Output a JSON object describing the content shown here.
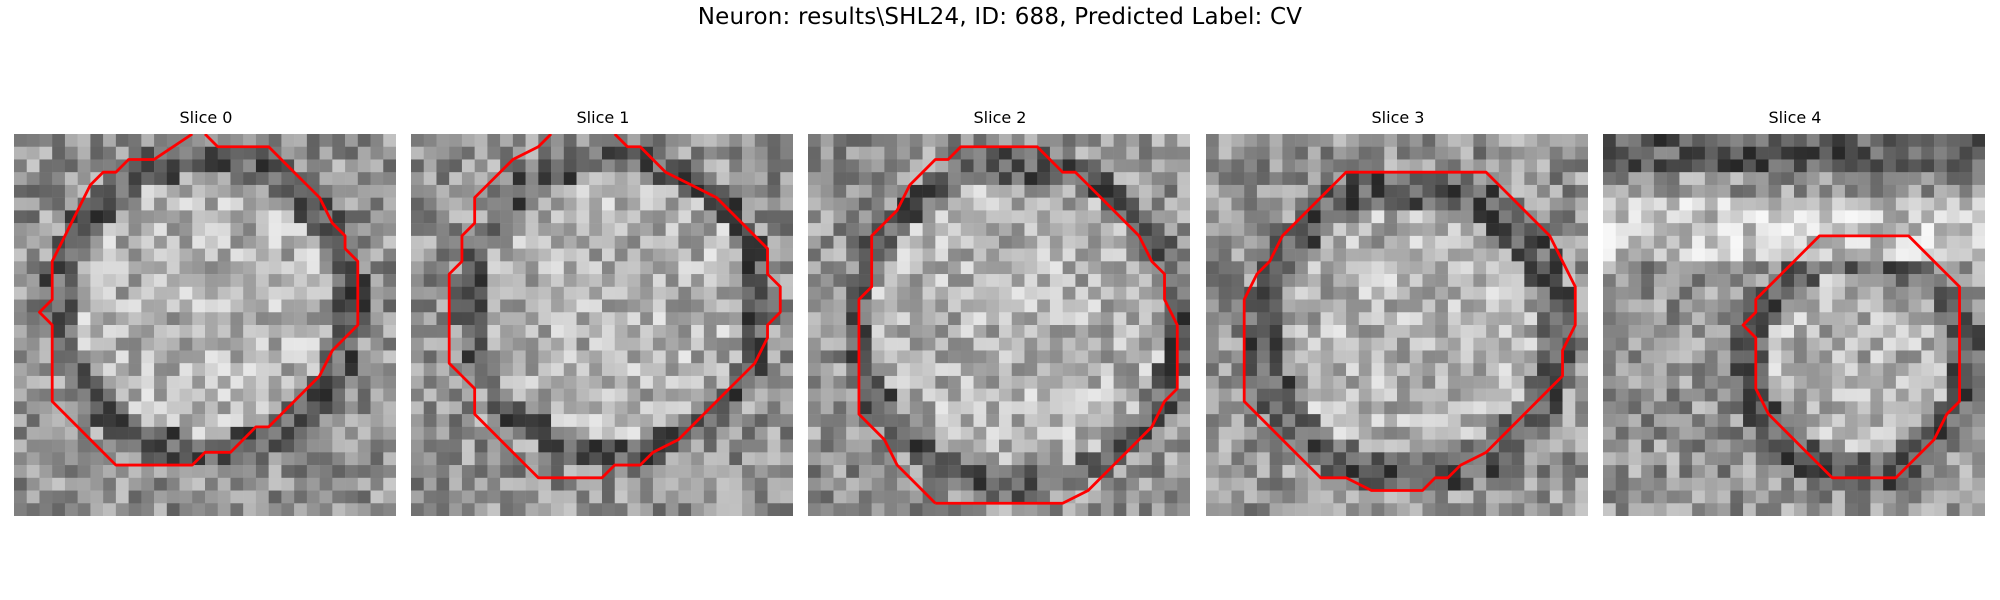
{
  "figure": {
    "title": "Neuron: results\\SHL24, ID: 688, Predicted Label: CV"
  },
  "panels": [
    {
      "label": "Slice 0",
      "contour": [
        [
          14,
          0
        ],
        [
          11,
          2
        ],
        [
          9,
          2
        ],
        [
          8,
          3
        ],
        [
          7,
          3
        ],
        [
          6,
          4
        ],
        [
          5,
          6
        ],
        [
          4,
          8
        ],
        [
          3,
          10
        ],
        [
          3,
          13
        ],
        [
          2,
          14
        ],
        [
          3,
          15
        ],
        [
          3,
          18
        ],
        [
          3,
          21
        ],
        [
          4,
          22
        ],
        [
          5,
          23
        ],
        [
          6,
          24
        ],
        [
          7,
          25
        ],
        [
          8,
          26
        ],
        [
          10,
          26
        ],
        [
          12,
          26
        ],
        [
          14,
          26
        ],
        [
          15,
          25
        ],
        [
          17,
          25
        ],
        [
          18,
          24
        ],
        [
          19,
          23
        ],
        [
          20,
          23
        ],
        [
          21,
          22
        ],
        [
          22,
          21
        ],
        [
          23,
          20
        ],
        [
          24,
          19
        ],
        [
          25,
          17
        ],
        [
          26,
          16
        ],
        [
          27,
          15
        ],
        [
          27,
          12
        ],
        [
          27,
          10
        ],
        [
          26,
          9
        ],
        [
          26,
          8
        ],
        [
          25,
          7
        ],
        [
          24,
          5
        ],
        [
          23,
          4
        ],
        [
          22,
          3
        ],
        [
          21,
          2
        ],
        [
          20,
          1
        ],
        [
          19,
          1
        ],
        [
          17,
          1
        ],
        [
          16,
          1
        ],
        [
          15,
          0
        ]
      ]
    },
    {
      "label": "Slice 1",
      "contour": [
        [
          11,
          0
        ],
        [
          10,
          1
        ],
        [
          8,
          2
        ],
        [
          7,
          3
        ],
        [
          6,
          4
        ],
        [
          5,
          5
        ],
        [
          5,
          7
        ],
        [
          4,
          8
        ],
        [
          4,
          10
        ],
        [
          3,
          11
        ],
        [
          3,
          13
        ],
        [
          3,
          16
        ],
        [
          3,
          18
        ],
        [
          4,
          19
        ],
        [
          5,
          20
        ],
        [
          5,
          22
        ],
        [
          6,
          23
        ],
        [
          7,
          24
        ],
        [
          8,
          25
        ],
        [
          9,
          26
        ],
        [
          10,
          27
        ],
        [
          12,
          27
        ],
        [
          14,
          27
        ],
        [
          15,
          27
        ],
        [
          16,
          26
        ],
        [
          18,
          26
        ],
        [
          19,
          25
        ],
        [
          21,
          24
        ],
        [
          22,
          23
        ],
        [
          23,
          22
        ],
        [
          24,
          21
        ],
        [
          25,
          20
        ],
        [
          26,
          19
        ],
        [
          27,
          18
        ],
        [
          28,
          16
        ],
        [
          28,
          15
        ],
        [
          29,
          14
        ],
        [
          29,
          13
        ],
        [
          29,
          12
        ],
        [
          28,
          11
        ],
        [
          28,
          9
        ],
        [
          27,
          8
        ],
        [
          26,
          7
        ],
        [
          25,
          6
        ],
        [
          24,
          5
        ],
        [
          22,
          4
        ],
        [
          20,
          3
        ],
        [
          19,
          2
        ],
        [
          18,
          1
        ],
        [
          17,
          1
        ],
        [
          16,
          0
        ]
      ]
    },
    {
      "label": "Slice 2",
      "contour": [
        [
          10,
          29
        ],
        [
          9,
          28
        ],
        [
          8,
          27
        ],
        [
          7,
          26
        ],
        [
          6,
          24
        ],
        [
          5,
          23
        ],
        [
          4,
          22
        ],
        [
          4,
          20
        ],
        [
          4,
          18
        ],
        [
          4,
          16
        ],
        [
          4,
          14
        ],
        [
          4,
          13
        ],
        [
          5,
          12
        ],
        [
          5,
          10
        ],
        [
          5,
          8
        ],
        [
          6,
          7
        ],
        [
          7,
          6
        ],
        [
          8,
          4
        ],
        [
          9,
          3
        ],
        [
          10,
          2
        ],
        [
          11,
          2
        ],
        [
          12,
          1
        ],
        [
          13,
          1
        ],
        [
          14,
          1
        ],
        [
          16,
          1
        ],
        [
          17,
          1
        ],
        [
          18,
          1
        ],
        [
          19,
          2
        ],
        [
          20,
          3
        ],
        [
          21,
          3
        ],
        [
          22,
          4
        ],
        [
          23,
          5
        ],
        [
          24,
          6
        ],
        [
          25,
          7
        ],
        [
          26,
          8
        ],
        [
          27,
          10
        ],
        [
          28,
          11
        ],
        [
          28,
          13
        ],
        [
          29,
          15
        ],
        [
          29,
          17
        ],
        [
          29,
          20
        ],
        [
          28,
          21
        ],
        [
          27,
          23
        ],
        [
          26,
          24
        ],
        [
          25,
          25
        ],
        [
          24,
          26
        ],
        [
          23,
          27
        ],
        [
          22,
          28
        ],
        [
          20,
          29
        ],
        [
          18,
          29
        ],
        [
          16,
          29
        ],
        [
          14,
          29
        ],
        [
          12,
          29
        ],
        [
          10,
          29
        ]
      ]
    },
    {
      "label": "Slice 3",
      "contour": [
        [
          12,
          3
        ],
        [
          11,
          3
        ],
        [
          10,
          4
        ],
        [
          9,
          5
        ],
        [
          8,
          6
        ],
        [
          7,
          7
        ],
        [
          6,
          8
        ],
        [
          5,
          10
        ],
        [
          4,
          11
        ],
        [
          3,
          13
        ],
        [
          3,
          15
        ],
        [
          3,
          17
        ],
        [
          3,
          19
        ],
        [
          3,
          21
        ],
        [
          4,
          22
        ],
        [
          5,
          23
        ],
        [
          6,
          24
        ],
        [
          7,
          25
        ],
        [
          8,
          26
        ],
        [
          9,
          27
        ],
        [
          11,
          27
        ],
        [
          13,
          28
        ],
        [
          15,
          28
        ],
        [
          17,
          28
        ],
        [
          18,
          27
        ],
        [
          19,
          27
        ],
        [
          20,
          26
        ],
        [
          22,
          25
        ],
        [
          23,
          24
        ],
        [
          24,
          23
        ],
        [
          25,
          22
        ],
        [
          26,
          21
        ],
        [
          27,
          20
        ],
        [
          28,
          19
        ],
        [
          28,
          17
        ],
        [
          29,
          15
        ],
        [
          29,
          12
        ],
        [
          28,
          10
        ],
        [
          27,
          8
        ],
        [
          26,
          7
        ],
        [
          25,
          6
        ],
        [
          24,
          5
        ],
        [
          23,
          4
        ],
        [
          22,
          3
        ],
        [
          21,
          3
        ],
        [
          19,
          3
        ],
        [
          17,
          3
        ],
        [
          15,
          3
        ],
        [
          13,
          3
        ],
        [
          12,
          3
        ]
      ]
    },
    {
      "label": "Slice 4",
      "contour": [
        [
          18,
          8
        ],
        [
          17,
          8
        ],
        [
          16,
          9
        ],
        [
          15,
          10
        ],
        [
          14,
          11
        ],
        [
          13,
          12
        ],
        [
          12,
          13
        ],
        [
          12,
          14
        ],
        [
          11,
          15
        ],
        [
          12,
          16
        ],
        [
          12,
          17
        ],
        [
          12,
          18
        ],
        [
          12,
          19
        ],
        [
          12,
          20
        ],
        [
          13,
          22
        ],
        [
          14,
          23
        ],
        [
          15,
          24
        ],
        [
          16,
          25
        ],
        [
          17,
          26
        ],
        [
          18,
          27
        ],
        [
          19,
          27
        ],
        [
          20,
          27
        ],
        [
          21,
          27
        ],
        [
          22,
          27
        ],
        [
          23,
          27
        ],
        [
          24,
          26
        ],
        [
          25,
          25
        ],
        [
          26,
          24
        ],
        [
          27,
          22
        ],
        [
          28,
          21
        ],
        [
          28,
          20
        ],
        [
          28,
          18
        ],
        [
          28,
          16
        ],
        [
          28,
          14
        ],
        [
          28,
          12
        ],
        [
          27,
          11
        ],
        [
          26,
          10
        ],
        [
          25,
          9
        ],
        [
          24,
          8
        ],
        [
          23,
          8
        ],
        [
          22,
          8
        ],
        [
          21,
          8
        ],
        [
          20,
          8
        ],
        [
          19,
          8
        ],
        [
          18,
          8
        ]
      ]
    }
  ],
  "colors": {
    "contour": "#ff0000"
  }
}
